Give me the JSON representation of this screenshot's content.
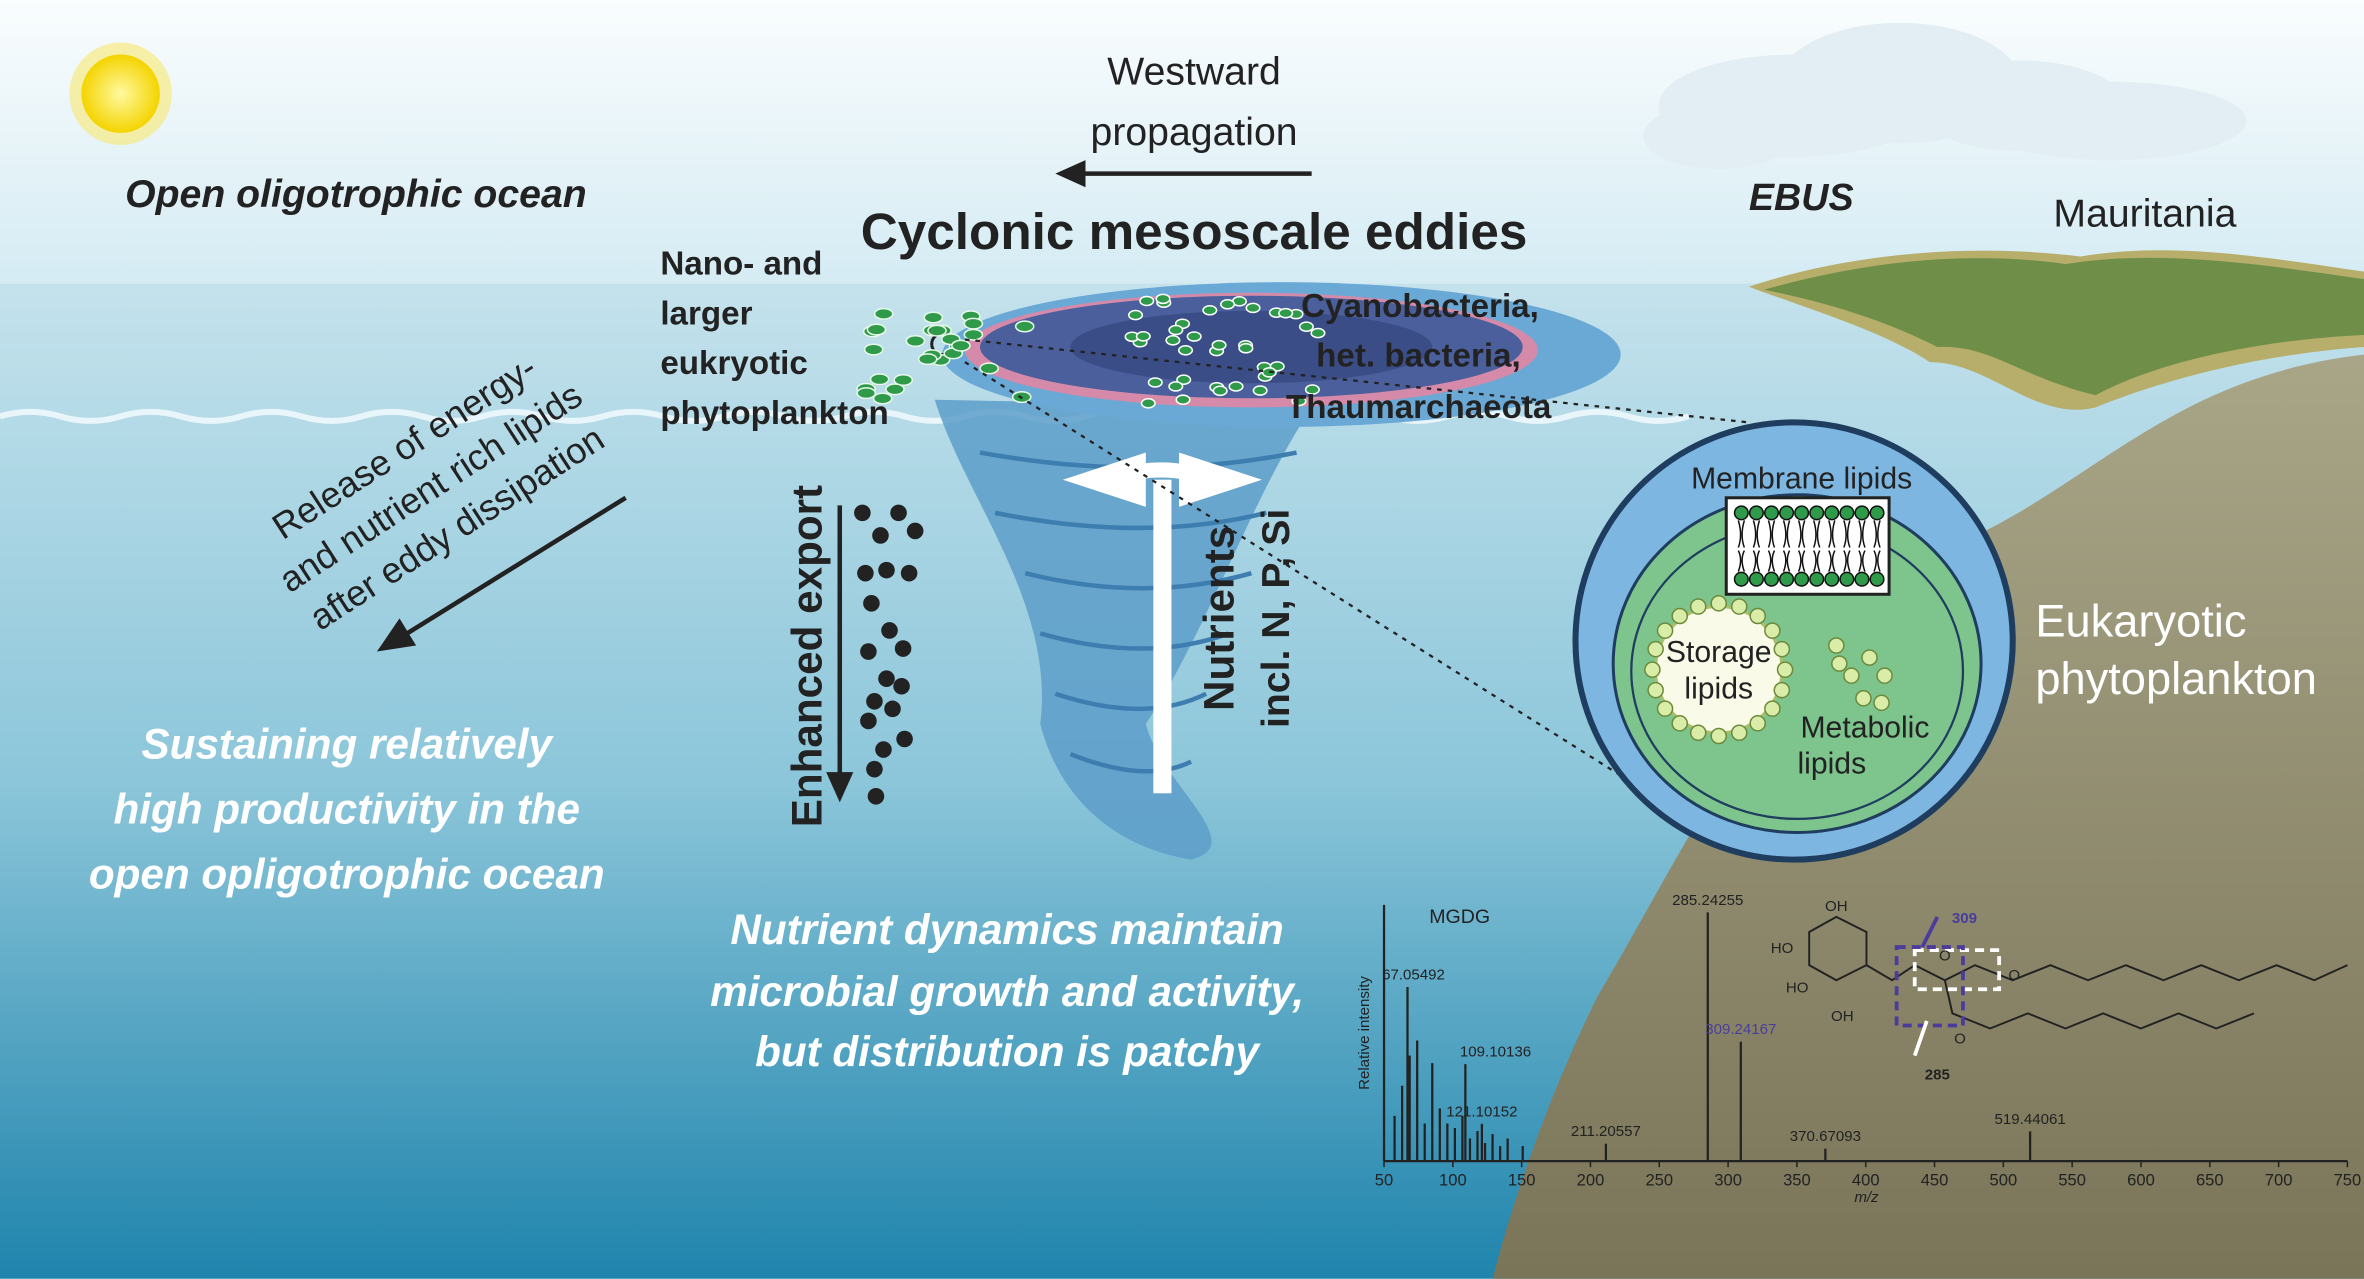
{
  "title": "Cyclonic mesoscale eddies",
  "labels": {
    "westward": [
      "Westward",
      "propagation"
    ],
    "open_ocean": "Open oligotrophic ocean",
    "ebus": "EBUS",
    "mauritania": "Mauritania",
    "nano": [
      "Nano- and",
      "larger",
      "eukryotic",
      "phytoplankton"
    ],
    "cyano": [
      "Cyanobacteria,",
      "het. bacteria,",
      "Thaumarchaeota"
    ],
    "release": [
      "Release of energy-",
      "and nutrient rich lipids",
      "after eddy dissipation"
    ],
    "export": "Enhanced export",
    "nutrients": [
      "Nutrients",
      "incl. N, P, Si"
    ],
    "sustaining": [
      "Sustaining relatively",
      "high productivity in the",
      "open opligotrophic ocean"
    ],
    "dynamics": [
      "Nutrient dynamics maintain",
      "microbial growth and activity,",
      "but distribution is patchy"
    ],
    "eukaryotic": [
      "Eukaryotic",
      "phytoplankton"
    ],
    "membrane": "Membrane lipids",
    "storage": [
      "Storage",
      "lipids"
    ],
    "metabolic": [
      "Metabolic",
      "lipids"
    ]
  },
  "spectrum": {
    "title": "MGDG",
    "y_label": "Relative intensity",
    "x_label": "m/z",
    "xlim": [
      50,
      750
    ],
    "xticks": [
      50,
      100,
      150,
      200,
      250,
      300,
      350,
      400,
      450,
      500,
      550,
      600,
      650,
      700,
      750
    ],
    "peaks_mz": [
      67.05492,
      109.10136,
      121.10152,
      211.20557,
      285.24255,
      309.24167,
      370.67093,
      519.44061
    ],
    "peaks_relative_intensity": [
      70,
      39,
      15,
      7,
      100,
      48,
      5,
      12
    ],
    "structure_labels": [
      "OH",
      "HO",
      "HO",
      "OH",
      "O",
      "O",
      "O",
      "309",
      "285"
    ]
  }
}
